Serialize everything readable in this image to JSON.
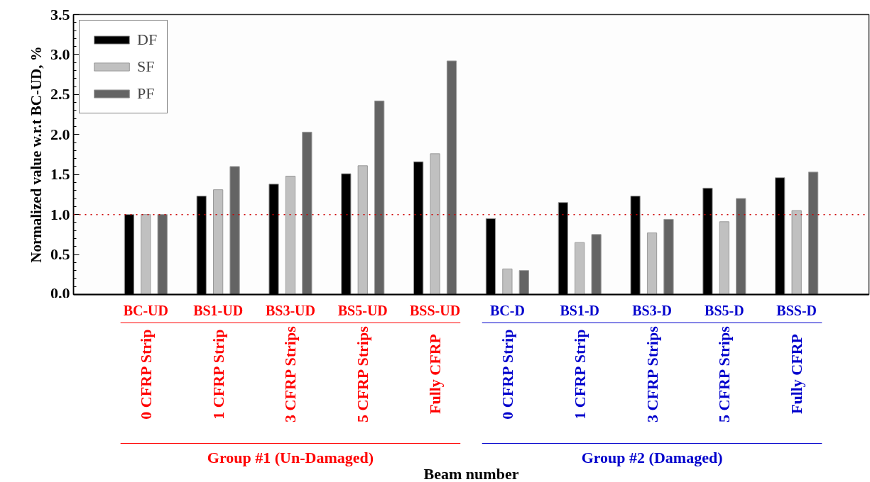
{
  "chart_data": {
    "type": "bar",
    "ylabel": "Normalized value w.r.t BC-UD, %",
    "categories": [
      "BC-UD",
      "BS1-UD",
      "BS3-UD",
      "BS5-UD",
      "BSS-UD",
      "BC-D",
      "BS1-D",
      "BS3-D",
      "BS5-D",
      "BSS-D"
    ],
    "series": [
      {
        "name": "DF",
        "color": "#000000",
        "values": [
          1.0,
          1.23,
          1.38,
          1.51,
          1.66,
          0.95,
          1.15,
          1.23,
          1.33,
          1.46
        ]
      },
      {
        "name": "SF",
        "color": "#c0c0c0",
        "values": [
          1.0,
          1.31,
          1.48,
          1.61,
          1.76,
          0.32,
          0.65,
          0.77,
          0.91,
          1.05
        ]
      },
      {
        "name": "PF",
        "color": "#646464",
        "values": [
          1.0,
          1.6,
          2.03,
          2.42,
          2.92,
          0.3,
          0.75,
          0.94,
          1.2,
          1.53
        ]
      }
    ],
    "ylim": [
      0,
      3.5
    ],
    "yticks": [
      {
        "value": 0,
        "label": "0.0"
      },
      {
        "value": 0.5,
        "label": "0.5"
      },
      {
        "value": 1,
        "label": "1.0"
      },
      {
        "value": 1.5,
        "label": "1.5"
      },
      {
        "value": 2,
        "label": "2.0"
      },
      {
        "value": 2.5,
        "label": "2.5"
      },
      {
        "value": 3,
        "label": "3.0"
      },
      {
        "value": 3.5,
        "label": "3.5"
      }
    ],
    "ref_lines": [
      {
        "axis": "y",
        "value": 1.0,
        "color": "#cc0000",
        "line_style": "dotted"
      }
    ],
    "legend": "top left",
    "grid": false,
    "annotations": [
      "0 CFRP Strip",
      "1 CFRP Strip",
      "3 CFRP Strips",
      "5 CFRP Strips",
      "Fully CFRP",
      "0 CFRP Strip",
      "1 CFRP Strip",
      "3 CFRP Strips",
      "5 CFRP Strips",
      "Fully CFRP",
      "Group #1 (Un-Damaged)",
      "Group #2 (Damaged)",
      "Beam number"
    ]
  }
}
